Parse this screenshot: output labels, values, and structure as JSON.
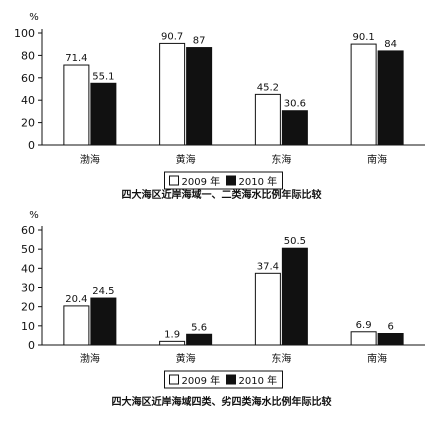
{
  "colors": {
    "background": "#ffffff",
    "bar_2009": "#ffffff",
    "bar_2010": "#111111",
    "axis": "#111111"
  },
  "chart_data": [
    {
      "type": "bar",
      "title": "四大海区近岸海域一、二类海水比例年际比较",
      "ylabel": "%",
      "ylim": [
        0,
        100
      ],
      "yticks": [
        0,
        20,
        40,
        60,
        80,
        100
      ],
      "categories": [
        "渤海",
        "黄海",
        "东海",
        "南海"
      ],
      "series": [
        {
          "name": "2009 年",
          "values": [
            71.4,
            90.7,
            45.2,
            90.1
          ]
        },
        {
          "name": "2010 年",
          "values": [
            55.1,
            87.0,
            30.6,
            84.0
          ]
        }
      ],
      "legend_position": "bottom-center",
      "grid": false
    },
    {
      "type": "bar",
      "title": "四大海区近岸海域四类、劣四类海水比例年际比较",
      "ylabel": "%",
      "ylim": [
        0,
        60
      ],
      "yticks": [
        0,
        10,
        20,
        30,
        40,
        50,
        60
      ],
      "categories": [
        "渤海",
        "黄海",
        "东海",
        "南海"
      ],
      "series": [
        {
          "name": "2009 年",
          "values": [
            20.4,
            1.9,
            37.4,
            6.9
          ]
        },
        {
          "name": "2010 年",
          "values": [
            24.5,
            5.6,
            50.5,
            6.0
          ]
        }
      ],
      "legend_position": "bottom-center",
      "grid": false
    }
  ]
}
